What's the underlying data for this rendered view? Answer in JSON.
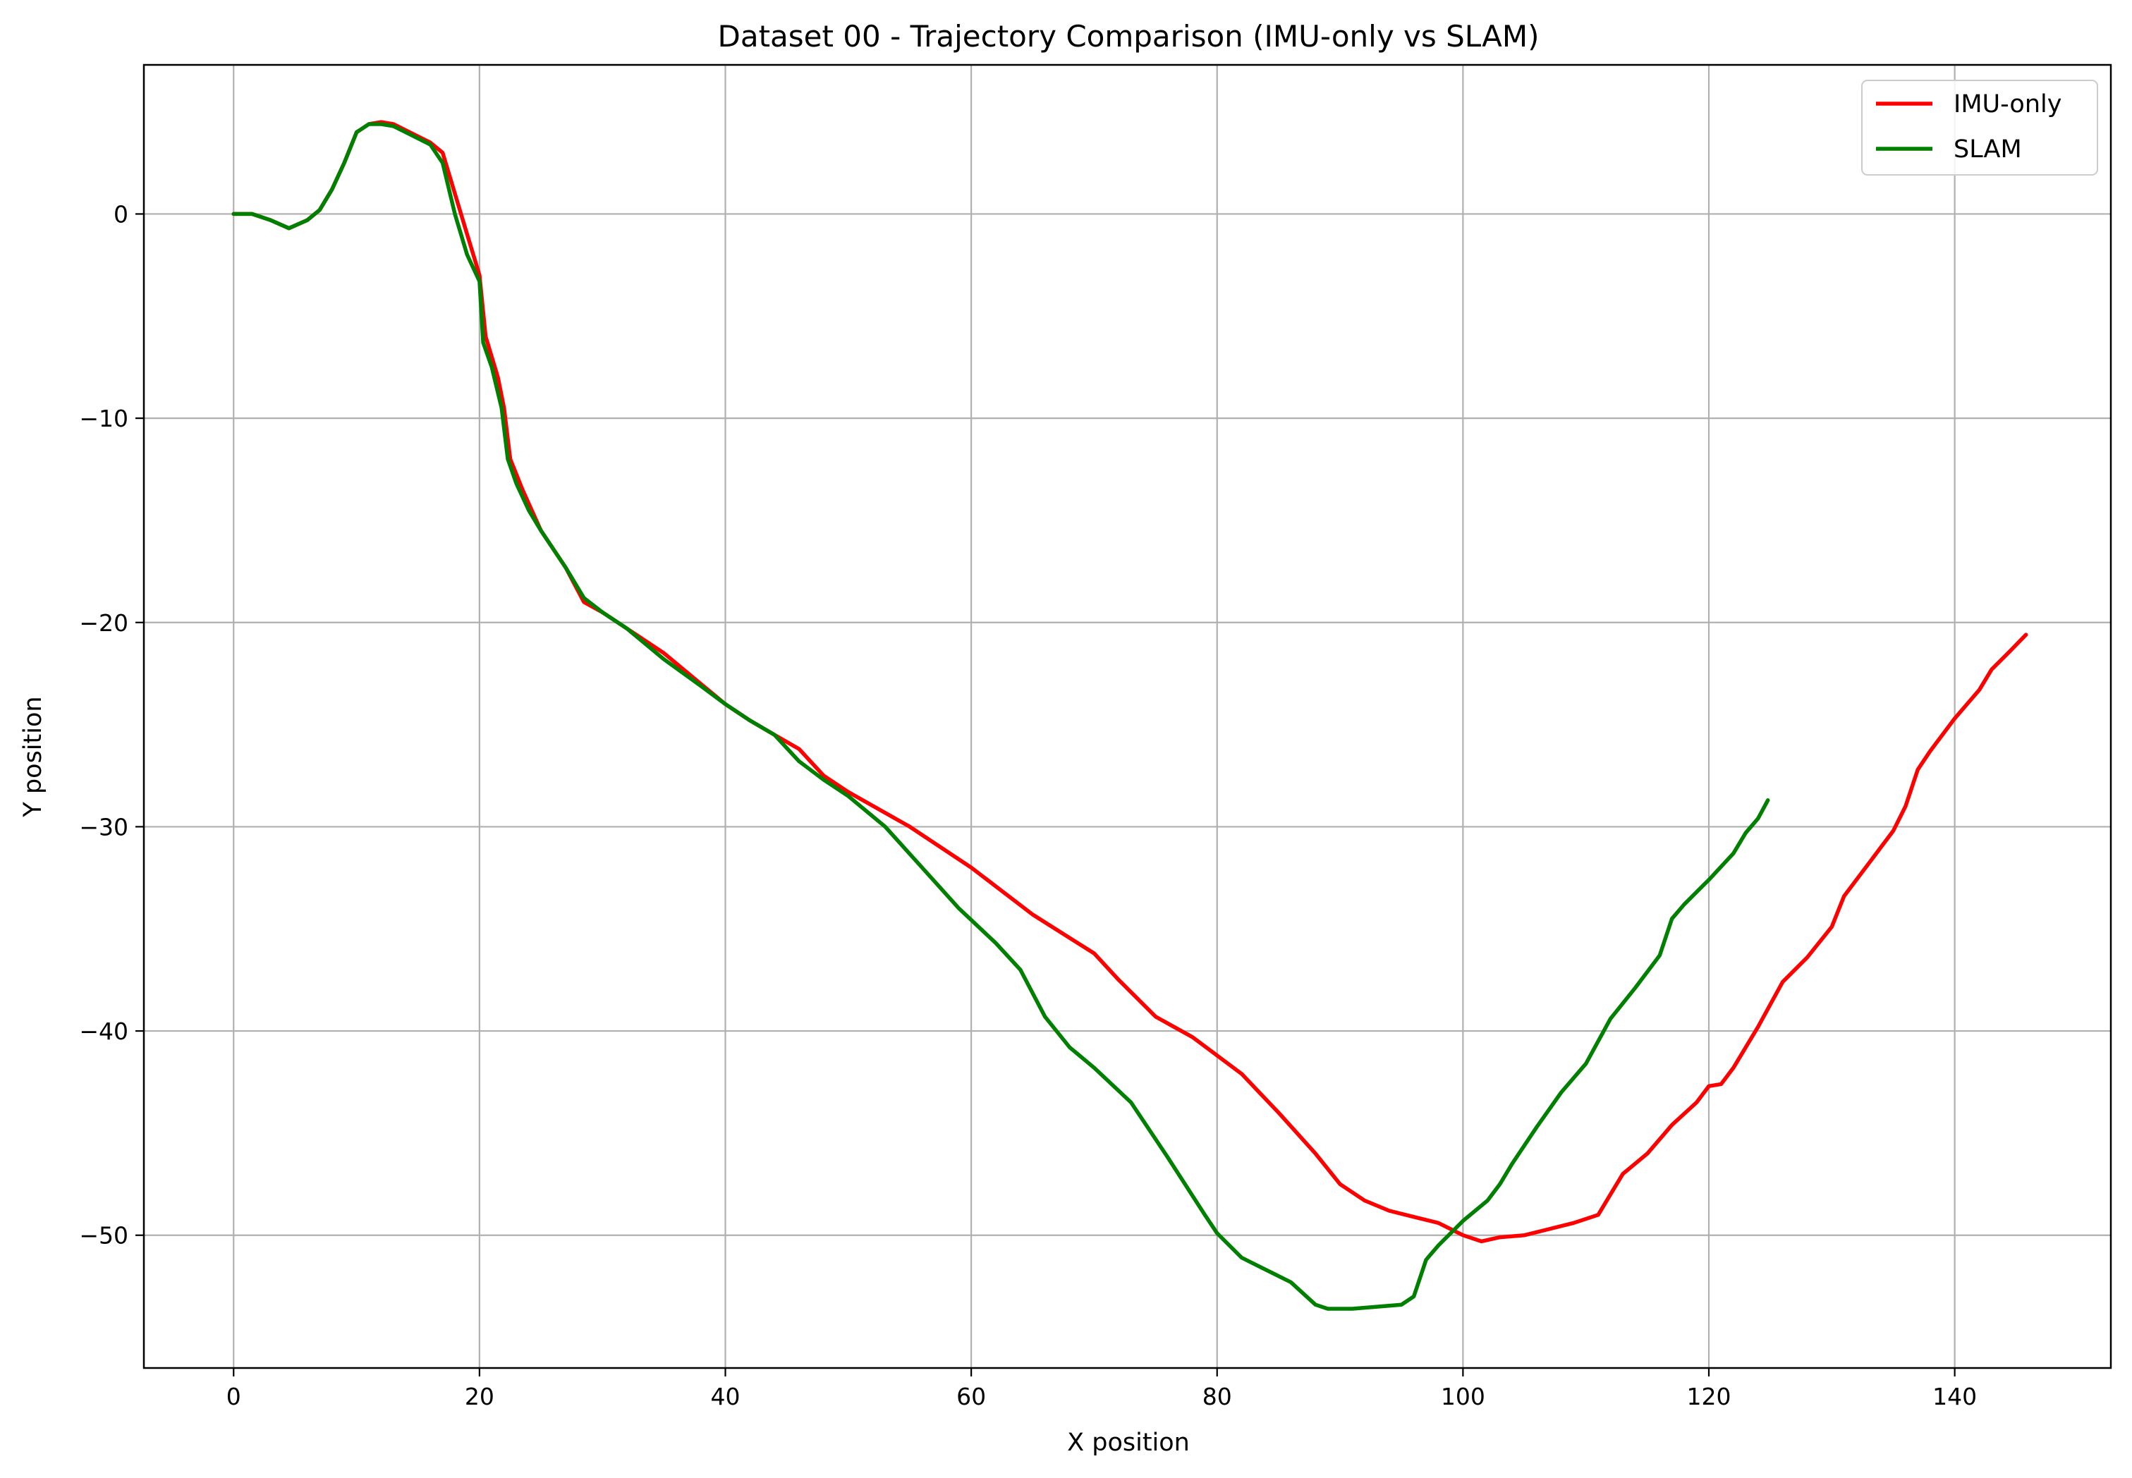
{
  "chart_data": {
    "type": "line",
    "title": "Dataset 00 - Trajectory Comparison (IMU-only vs SLAM)",
    "xlabel": "X position",
    "ylabel": "Y position",
    "xlim": [
      -7.3,
      152.7
    ],
    "ylim": [
      -56.5,
      7.3
    ],
    "xticks": [
      0,
      20,
      40,
      60,
      80,
      100,
      120,
      140
    ],
    "yticks": [
      0,
      -10,
      -20,
      -30,
      -40,
      -50
    ],
    "grid": true,
    "legend_position": "top-right",
    "series": [
      {
        "name": "IMU-only",
        "color": "#ff0000",
        "points": [
          [
            0,
            0
          ],
          [
            1.5,
            0
          ],
          [
            3,
            -0.3
          ],
          [
            4.5,
            -0.7
          ],
          [
            6,
            -0.3
          ],
          [
            7,
            0.2
          ],
          [
            8,
            1.2
          ],
          [
            9,
            2.5
          ],
          [
            10,
            4
          ],
          [
            11,
            4.4
          ],
          [
            12,
            4.5
          ],
          [
            13,
            4.4
          ],
          [
            14,
            4.1
          ],
          [
            15,
            3.8
          ],
          [
            16,
            3.5
          ],
          [
            17,
            3
          ],
          [
            18,
            1
          ],
          [
            19,
            -1
          ],
          [
            20,
            -3
          ],
          [
            20.5,
            -6
          ],
          [
            21.5,
            -8
          ],
          [
            22,
            -9.5
          ],
          [
            22.5,
            -12
          ],
          [
            23.5,
            -13.5
          ],
          [
            25,
            -15.5
          ],
          [
            27,
            -17.3
          ],
          [
            28.5,
            -19
          ],
          [
            30,
            -19.5
          ],
          [
            32,
            -20.3
          ],
          [
            35,
            -21.5
          ],
          [
            38,
            -23
          ],
          [
            40,
            -24
          ],
          [
            42,
            -24.8
          ],
          [
            44,
            -25.5
          ],
          [
            46,
            -26.2
          ],
          [
            48,
            -27.5
          ],
          [
            50,
            -28.3
          ],
          [
            55,
            -30
          ],
          [
            60,
            -32
          ],
          [
            65,
            -34.3
          ],
          [
            70,
            -36.2
          ],
          [
            72,
            -37.5
          ],
          [
            75,
            -39.3
          ],
          [
            78,
            -40.3
          ],
          [
            80,
            -41.2
          ],
          [
            82,
            -42.1
          ],
          [
            85,
            -44
          ],
          [
            88,
            -46
          ],
          [
            90,
            -47.5
          ],
          [
            92,
            -48.3
          ],
          [
            94,
            -48.8
          ],
          [
            96,
            -49.1
          ],
          [
            98,
            -49.4
          ],
          [
            100,
            -50
          ],
          [
            101.5,
            -50.3
          ],
          [
            103,
            -50.1
          ],
          [
            105,
            -50
          ],
          [
            107,
            -49.7
          ],
          [
            109,
            -49.4
          ],
          [
            111,
            -49
          ],
          [
            112,
            -48
          ],
          [
            113,
            -47
          ],
          [
            115,
            -46
          ],
          [
            117,
            -44.6
          ],
          [
            119,
            -43.5
          ],
          [
            120,
            -42.7
          ],
          [
            121,
            -42.6
          ],
          [
            122,
            -41.8
          ],
          [
            124,
            -39.8
          ],
          [
            126,
            -37.6
          ],
          [
            128,
            -36.4
          ],
          [
            130,
            -34.9
          ],
          [
            131,
            -33.4
          ],
          [
            133,
            -31.8
          ],
          [
            135,
            -30.2
          ],
          [
            136,
            -29
          ],
          [
            137,
            -27.2
          ],
          [
            138,
            -26.3
          ],
          [
            140,
            -24.7
          ],
          [
            142,
            -23.3
          ],
          [
            143,
            -22.3
          ],
          [
            144.5,
            -21.4
          ],
          [
            145.8,
            -20.6
          ]
        ]
      },
      {
        "name": "SLAM",
        "color": "#008000",
        "points": [
          [
            0,
            0
          ],
          [
            1.5,
            0
          ],
          [
            3,
            -0.3
          ],
          [
            4.5,
            -0.7
          ],
          [
            6,
            -0.3
          ],
          [
            7,
            0.2
          ],
          [
            8,
            1.2
          ],
          [
            9,
            2.5
          ],
          [
            10,
            4
          ],
          [
            11,
            4.4
          ],
          [
            12,
            4.4
          ],
          [
            13,
            4.3
          ],
          [
            14,
            4
          ],
          [
            15,
            3.7
          ],
          [
            16,
            3.4
          ],
          [
            17,
            2.5
          ],
          [
            18,
            0
          ],
          [
            19,
            -2
          ],
          [
            20,
            -3.3
          ],
          [
            20.3,
            -6.3
          ],
          [
            21,
            -7.5
          ],
          [
            21.8,
            -9.5
          ],
          [
            22.3,
            -12
          ],
          [
            23,
            -13.2
          ],
          [
            24,
            -14.5
          ],
          [
            25,
            -15.5
          ],
          [
            27,
            -17.3
          ],
          [
            28.5,
            -18.8
          ],
          [
            30,
            -19.5
          ],
          [
            32,
            -20.3
          ],
          [
            35,
            -21.8
          ],
          [
            38,
            -23.1
          ],
          [
            40,
            -24
          ],
          [
            42,
            -24.8
          ],
          [
            44,
            -25.5
          ],
          [
            46,
            -26.8
          ],
          [
            48,
            -27.7
          ],
          [
            50,
            -28.5
          ],
          [
            53,
            -30
          ],
          [
            56,
            -32
          ],
          [
            59,
            -34
          ],
          [
            62,
            -35.7
          ],
          [
            64,
            -37
          ],
          [
            66,
            -39.3
          ],
          [
            68,
            -40.8
          ],
          [
            70,
            -41.8
          ],
          [
            73,
            -43.5
          ],
          [
            76,
            -46.2
          ],
          [
            79,
            -49
          ],
          [
            80,
            -49.9
          ],
          [
            82,
            -51.1
          ],
          [
            84,
            -51.7
          ],
          [
            86,
            -52.3
          ],
          [
            88,
            -53.4
          ],
          [
            89,
            -53.6
          ],
          [
            91,
            -53.6
          ],
          [
            93,
            -53.5
          ],
          [
            95,
            -53.4
          ],
          [
            96,
            -53
          ],
          [
            97,
            -51.2
          ],
          [
            98,
            -50.5
          ],
          [
            100,
            -49.3
          ],
          [
            102,
            -48.3
          ],
          [
            103,
            -47.5
          ],
          [
            104,
            -46.5
          ],
          [
            106,
            -44.7
          ],
          [
            108,
            -43
          ],
          [
            110,
            -41.6
          ],
          [
            112,
            -39.4
          ],
          [
            114,
            -37.9
          ],
          [
            116,
            -36.3
          ],
          [
            117,
            -34.5
          ],
          [
            118,
            -33.8
          ],
          [
            120,
            -32.6
          ],
          [
            122,
            -31.3
          ],
          [
            123,
            -30.3
          ],
          [
            124,
            -29.6
          ],
          [
            124.8,
            -28.7
          ]
        ]
      }
    ]
  }
}
